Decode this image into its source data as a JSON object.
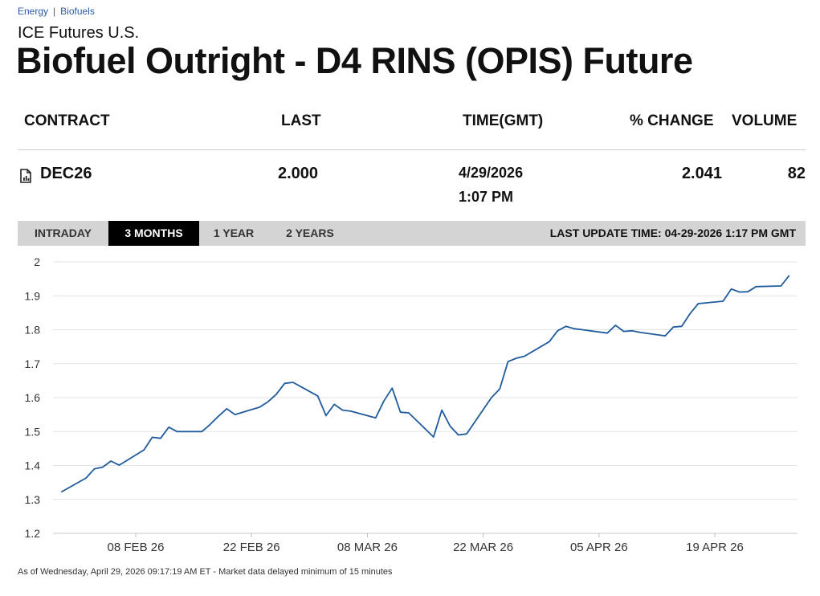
{
  "breadcrumb": {
    "level1": "Energy",
    "separator": "|",
    "level2": "Biofuels"
  },
  "exchange": "ICE Futures U.S.",
  "title": "Biofuel Outright - D4 RINS (OPIS) Future",
  "table": {
    "headers": {
      "contract": "CONTRACT",
      "last": "LAST",
      "time": "TIME(GMT)",
      "pct_change": "% CHANGE",
      "volume": "VOLUME"
    },
    "row": {
      "icon": "document-chart-icon",
      "contract": "DEC26",
      "last": "2.000",
      "date": "4/29/2026",
      "time": "1:07 PM",
      "pct_change": "2.041",
      "volume": "82"
    }
  },
  "tabs": [
    "INTRADAY",
    "3 MONTHS",
    "1 YEAR",
    "2 YEARS"
  ],
  "active_tab": "3 MONTHS",
  "last_update": "LAST UPDATE TIME: 04-29-2026 1:17 PM GMT",
  "colors": {
    "line": "#1f5b9b",
    "grid": "#e3e3e3",
    "tab_bg": "#d4d4d4",
    "tab_active_bg": "#000000"
  },
  "chart_data": {
    "type": "line",
    "ylim": [
      1.2,
      2.0
    ],
    "yticks": [
      "2",
      "1.9",
      "1.8",
      "1.7",
      "1.6",
      "1.5",
      "1.4",
      "1.3",
      "1.2"
    ],
    "xlim": [
      "2026-01-29",
      "2026-04-29"
    ],
    "xticks": [
      {
        "date": "2026-02-08",
        "label": "08 FEB 26"
      },
      {
        "date": "2026-02-22",
        "label": "22 FEB 26"
      },
      {
        "date": "2026-03-08",
        "label": "08 MAR 26"
      },
      {
        "date": "2026-03-22",
        "label": "22 MAR 26"
      },
      {
        "date": "2026-04-05",
        "label": "05 APR 26"
      },
      {
        "date": "2026-04-19",
        "label": "19 APR 26"
      }
    ],
    "grid": true,
    "x": [
      "2026-01-30",
      "2026-02-02",
      "2026-02-03",
      "2026-02-04",
      "2026-02-05",
      "2026-02-06",
      "2026-02-09",
      "2026-02-10",
      "2026-02-11",
      "2026-02-12",
      "2026-02-13",
      "2026-02-16",
      "2026-02-17",
      "2026-02-18",
      "2026-02-19",
      "2026-02-20",
      "2026-02-23",
      "2026-02-24",
      "2026-02-25",
      "2026-02-26",
      "2026-02-27",
      "2026-03-02",
      "2026-03-03",
      "2026-03-04",
      "2026-03-05",
      "2026-03-06",
      "2026-03-09",
      "2026-03-10",
      "2026-03-11",
      "2026-03-12",
      "2026-03-13",
      "2026-03-16",
      "2026-03-17",
      "2026-03-18",
      "2026-03-19",
      "2026-03-20",
      "2026-03-23",
      "2026-03-24",
      "2026-03-25",
      "2026-03-26",
      "2026-03-27",
      "2026-03-30",
      "2026-03-31",
      "2026-04-01",
      "2026-04-02",
      "2026-04-03",
      "2026-04-06",
      "2026-04-07",
      "2026-04-08",
      "2026-04-09",
      "2026-04-10",
      "2026-04-13",
      "2026-04-14",
      "2026-04-15",
      "2026-04-16",
      "2026-04-17",
      "2026-04-20",
      "2026-04-21",
      "2026-04-22",
      "2026-04-23",
      "2026-04-24",
      "2026-04-27",
      "2026-04-28"
    ],
    "values": [
      1.322,
      1.363,
      1.39,
      1.395,
      1.413,
      1.401,
      1.446,
      1.483,
      1.48,
      1.513,
      1.5,
      1.5,
      1.521,
      1.545,
      1.567,
      1.55,
      1.572,
      1.588,
      1.61,
      1.642,
      1.645,
      1.605,
      1.547,
      1.58,
      1.563,
      1.56,
      1.54,
      1.59,
      1.628,
      1.557,
      1.555,
      1.484,
      1.563,
      1.516,
      1.49,
      1.493,
      1.6,
      1.625,
      1.706,
      1.716,
      1.722,
      1.765,
      1.797,
      1.81,
      1.803,
      1.8,
      1.79,
      1.813,
      1.795,
      1.797,
      1.792,
      1.782,
      1.808,
      1.81,
      1.847,
      1.877,
      1.884,
      1.92,
      1.911,
      1.912,
      1.927,
      1.929,
      1.96
    ]
  },
  "footnote": "As of Wednesday, April 29, 2026 09:17:19 AM ET - Market data delayed minimum of 15 minutes"
}
